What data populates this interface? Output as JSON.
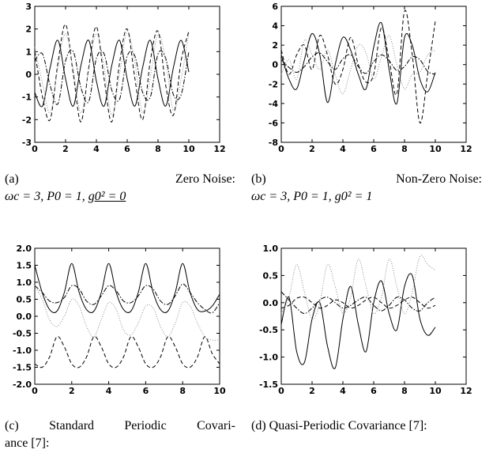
{
  "chart_data": [
    {
      "type": "line",
      "xlim": [
        0,
        12
      ],
      "ylim": [
        -3,
        3
      ],
      "xticks": [
        "0",
        "2",
        "4",
        "6",
        "8",
        "10",
        "12"
      ],
      "yticks": [
        "3",
        "2",
        "1",
        "0",
        "-1",
        "-2",
        "-3"
      ],
      "series": [
        {
          "style": "solid",
          "x": [
            0,
            0.5,
            1,
            1.5,
            2,
            2.5,
            3,
            3.5,
            4,
            4.5,
            5,
            5.5,
            6,
            6.5,
            7,
            7.5,
            8,
            8.5,
            9,
            9.5,
            10
          ],
          "y": [
            -0.8,
            -1.4,
            0.3,
            1.5,
            -0.2,
            -1.4,
            0.4,
            1.5,
            -0.3,
            -1.4,
            0.4,
            1.5,
            -0.2,
            -1.4,
            0.3,
            1.5,
            -0.2,
            -1.4,
            0.3,
            1.5,
            0.1
          ]
        },
        {
          "style": "dashed",
          "x": [
            0,
            0.5,
            1,
            1.5,
            2,
            2.5,
            3,
            3.5,
            4,
            4.5,
            5,
            5.5,
            6,
            6.5,
            7,
            7.5,
            8,
            8.5,
            9,
            9.5,
            10
          ],
          "y": [
            1.0,
            -1.0,
            -2.0,
            0.5,
            2.2,
            0.0,
            -2.1,
            0.3,
            2.1,
            -0.2,
            -2.1,
            0.5,
            2.0,
            -0.2,
            -2.0,
            0.6,
            1.9,
            -0.5,
            -1.8,
            0.6,
            1.9
          ]
        },
        {
          "style": "dashdot",
          "x": [
            0,
            0.5,
            1,
            1.5,
            2,
            2.5,
            3,
            3.5,
            4,
            4.5,
            5,
            5.5,
            6,
            6.5,
            7,
            7.5,
            8,
            8.5,
            9,
            9.5,
            10
          ],
          "y": [
            0.6,
            0.9,
            -0.5,
            -1.3,
            0.6,
            1.0,
            -0.6,
            -1.2,
            0.7,
            0.9,
            -0.7,
            -1.1,
            0.8,
            0.8,
            -0.8,
            -1.0,
            0.9,
            0.7,
            -0.9,
            -0.9,
            1.0
          ]
        },
        {
          "style": "dotted",
          "x": [
            0,
            0.5,
            1,
            1.5,
            2,
            2.5,
            3,
            3.5,
            4,
            4.5,
            5,
            5.5,
            6,
            6.5,
            7,
            7.5,
            8,
            8.5,
            9,
            9.5,
            10
          ],
          "y": [
            1.2,
            -0.4,
            -1.7,
            0.3,
            1.8,
            0.2,
            -1.7,
            0.2,
            1.8,
            0.3,
            -1.8,
            0.0,
            1.9,
            0.5,
            -1.7,
            -0.1,
            1.8,
            0.6,
            -1.6,
            -0.2,
            1.8
          ]
        }
      ]
    },
    {
      "type": "line",
      "xlim": [
        0,
        12
      ],
      "ylim": [
        -8,
        6
      ],
      "xticks": [
        "0",
        "2",
        "4",
        "6",
        "8",
        "10",
        "12"
      ],
      "yticks": [
        "6",
        "4",
        "2",
        "0",
        "-2",
        "-4",
        "-6",
        "-8"
      ],
      "series": [
        {
          "style": "solid",
          "x": [
            0,
            0.5,
            1,
            1.5,
            2,
            2.5,
            3,
            3.5,
            4,
            4.5,
            5,
            5.5,
            6,
            6.5,
            7,
            7.5,
            8,
            8.5,
            9,
            9.5,
            10
          ],
          "y": [
            1.0,
            -1.5,
            -2.5,
            0.5,
            3.2,
            1.0,
            -3.9,
            0.0,
            2.8,
            1.5,
            -1.0,
            -2.5,
            1.8,
            4.3,
            -0.5,
            -4.0,
            2.8,
            2.0,
            -1.5,
            -2.8,
            -0.8
          ]
        },
        {
          "style": "dashed",
          "x": [
            0,
            0.5,
            1,
            1.5,
            2,
            2.5,
            3,
            3.5,
            4,
            4.5,
            5,
            5.5,
            6,
            6.5,
            7,
            7.5,
            8,
            8.5,
            9,
            9.5,
            10
          ],
          "y": [
            1.5,
            -1.0,
            1.0,
            2.0,
            -0.5,
            3.0,
            1.0,
            -2.0,
            -0.5,
            2.8,
            0.0,
            -1.8,
            -1.0,
            3.8,
            0.5,
            -3.0,
            5.5,
            1.0,
            -6.0,
            -1.0,
            4.5
          ]
        },
        {
          "style": "dashdot",
          "x": [
            0,
            0.5,
            1,
            1.5,
            2,
            2.5,
            3,
            3.5,
            4,
            4.5,
            5,
            5.5,
            6,
            6.5,
            7,
            7.5,
            8,
            8.5,
            9,
            9.5,
            10
          ],
          "y": [
            0.5,
            -0.3,
            -0.8,
            -0.2,
            0.8,
            1.2,
            0.3,
            -0.5,
            0.6,
            1.0,
            -0.2,
            -0.9,
            0.3,
            1.0,
            0.4,
            -0.6,
            -0.2,
            0.8,
            0.5,
            -0.7,
            -1.0
          ]
        },
        {
          "style": "dotted",
          "x": [
            0,
            0.5,
            1,
            1.5,
            2,
            2.5,
            3,
            3.5,
            4,
            4.5,
            5,
            5.5,
            6,
            6.5,
            7,
            7.5,
            8,
            8.5,
            9,
            9.5,
            10
          ],
          "y": [
            -1.0,
            0.5,
            -1.5,
            2.5,
            1.0,
            -0.5,
            1.5,
            -1.0,
            -3.0,
            -0.5,
            2.0,
            1.2,
            -1.5,
            0.8,
            3.0,
            0.0,
            -2.5,
            -1.0,
            -0.8,
            1.0,
            1.5
          ]
        }
      ]
    },
    {
      "type": "line",
      "xlim": [
        0,
        10
      ],
      "ylim": [
        -2.0,
        2.0
      ],
      "xticks": [
        "0",
        "2",
        "4",
        "6",
        "8",
        "10"
      ],
      "yticks": [
        "2.0",
        "1.5",
        "1.0",
        "0.5",
        "0.0",
        "-0.5",
        "-1.0",
        "-1.5",
        "-2.0"
      ],
      "series": [
        {
          "style": "solid",
          "x": [
            0,
            0.4,
            0.8,
            1.2,
            1.6,
            2.0,
            2.4,
            2.8,
            3.2,
            3.6,
            4.0,
            4.4,
            4.8,
            5.2,
            5.6,
            6.0,
            6.4,
            6.8,
            7.2,
            7.6,
            8.0,
            8.4,
            8.8,
            9.2,
            9.6,
            10
          ],
          "y": [
            1.5,
            0.7,
            0.2,
            0.15,
            0.7,
            1.55,
            0.7,
            0.2,
            0.15,
            0.7,
            1.55,
            0.7,
            0.2,
            0.15,
            0.7,
            1.55,
            0.7,
            0.2,
            0.15,
            0.7,
            1.55,
            0.7,
            0.2,
            0.15,
            0.3,
            0.65
          ]
        },
        {
          "style": "dashdot",
          "x": [
            0,
            0.4,
            0.8,
            1.2,
            1.6,
            2.0,
            2.4,
            2.8,
            3.2,
            3.6,
            4.0,
            4.4,
            4.8,
            5.2,
            5.6,
            6.0,
            6.4,
            6.8,
            7.2,
            7.6,
            8.0,
            8.4,
            8.8,
            9.2,
            9.6,
            10
          ],
          "y": [
            0.9,
            0.7,
            0.45,
            0.4,
            0.55,
            0.9,
            0.8,
            0.45,
            0.35,
            0.6,
            0.9,
            0.75,
            0.45,
            0.4,
            0.6,
            0.9,
            0.8,
            0.45,
            0.35,
            0.6,
            0.95,
            0.7,
            0.4,
            0.2,
            0.1,
            0.4
          ]
        },
        {
          "style": "dashed",
          "x": [
            0,
            0.4,
            0.8,
            1.2,
            1.6,
            2.0,
            2.4,
            2.8,
            3.2,
            3.6,
            4.0,
            4.4,
            4.8,
            5.2,
            5.6,
            6.0,
            6.4,
            6.8,
            7.2,
            7.6,
            8.0,
            8.4,
            8.8,
            9.2,
            9.6,
            10
          ],
          "y": [
            -1.4,
            -1.5,
            -1.2,
            -0.6,
            -0.9,
            -1.4,
            -1.5,
            -1.2,
            -0.6,
            -0.9,
            -1.4,
            -1.5,
            -1.2,
            -0.6,
            -0.9,
            -1.4,
            -1.5,
            -1.2,
            -0.6,
            -0.9,
            -1.4,
            -1.5,
            -1.2,
            -0.6,
            -1.1,
            -1.4
          ]
        },
        {
          "style": "dotted",
          "x": [
            0,
            0.4,
            0.8,
            1.2,
            1.6,
            2.0,
            2.4,
            2.8,
            3.2,
            3.6,
            4.0,
            4.4,
            4.8,
            5.2,
            5.6,
            6.0,
            6.4,
            6.8,
            7.2,
            7.6,
            8.0,
            8.4,
            8.8,
            9.2,
            9.6,
            10
          ],
          "y": [
            0.9,
            0.5,
            -0.1,
            -0.3,
            0.0,
            0.5,
            0.3,
            -0.3,
            -0.6,
            -0.1,
            0.4,
            0.2,
            -0.4,
            -0.55,
            -0.2,
            0.3,
            0.25,
            -0.3,
            -0.6,
            -0.2,
            0.4,
            0.3,
            -0.2,
            -0.6,
            -0.7,
            -0.7
          ]
        }
      ]
    },
    {
      "type": "line",
      "xlim": [
        0,
        12
      ],
      "ylim": [
        -1.5,
        1.0
      ],
      "xticks": [
        "0",
        "2",
        "4",
        "6",
        "8",
        "10",
        "12"
      ],
      "yticks": [
        "1.0",
        "0.5",
        "0.0",
        "-0.5",
        "-1.0",
        "-1.5"
      ],
      "series": [
        {
          "style": "solid",
          "x": [
            0,
            0.5,
            1,
            1.5,
            2,
            2.5,
            3,
            3.5,
            4,
            4.5,
            5,
            5.5,
            6,
            6.5,
            7,
            7.5,
            8,
            8.5,
            9,
            9.5,
            10
          ],
          "y": [
            -0.4,
            0.1,
            -0.9,
            -1.1,
            -0.3,
            0.0,
            -0.8,
            -1.2,
            -0.3,
            0.3,
            -0.4,
            -0.9,
            0.0,
            0.4,
            -0.2,
            -0.5,
            0.3,
            0.5,
            -0.3,
            -0.6,
            -0.45
          ]
        },
        {
          "style": "dashed",
          "x": [
            0,
            0.5,
            1,
            1.5,
            2,
            2.5,
            3,
            3.5,
            4,
            4.5,
            5,
            5.5,
            6,
            6.5,
            7,
            7.5,
            8,
            8.5,
            9,
            9.5,
            10
          ],
          "y": [
            -0.1,
            -0.05,
            0.08,
            0.1,
            0.0,
            -0.1,
            -0.05,
            0.05,
            0.0,
            -0.1,
            -0.05,
            0.05,
            0.1,
            0.0,
            -0.1,
            -0.05,
            0.05,
            0.1,
            0.0,
            -0.1,
            -0.05
          ]
        },
        {
          "style": "dashdot",
          "x": [
            0,
            0.5,
            1,
            1.5,
            2,
            2.5,
            3,
            3.5,
            4,
            4.5,
            5,
            5.5,
            6,
            6.5,
            7,
            7.5,
            8,
            8.5,
            9,
            9.5,
            10
          ],
          "y": [
            0.2,
            0.05,
            -0.1,
            -0.2,
            -0.1,
            0.05,
            0.1,
            0.0,
            -0.1,
            -0.05,
            0.05,
            0.1,
            -0.05,
            -0.15,
            -0.05,
            0.1,
            0.05,
            -0.1,
            -0.15,
            0.0,
            0.1
          ]
        },
        {
          "style": "dotted",
          "x": [
            0,
            0.5,
            1,
            1.5,
            2,
            2.5,
            3,
            3.5,
            4,
            4.5,
            5,
            5.5,
            6,
            6.5,
            7,
            7.5,
            8,
            8.5,
            9,
            9.5,
            10
          ],
          "y": [
            -0.2,
            0.1,
            0.7,
            0.2,
            -0.3,
            0.0,
            0.7,
            0.3,
            -0.2,
            0.1,
            0.8,
            0.3,
            -0.2,
            0.1,
            0.8,
            0.3,
            -0.2,
            0.2,
            0.85,
            0.7,
            0.6
          ]
        }
      ]
    }
  ],
  "captions": {
    "a": {
      "label": "(a)",
      "head": "Zero Noise:",
      "math_plain": "ωc = 3, P0 = 1, ",
      "math_underlined": "g0² = 0"
    },
    "b": {
      "label": "(b)",
      "head": "Non-Zero Noise:",
      "math_plain": "ωc = 3, P0 = 1, g0² = 1"
    },
    "c": {
      "line1_words": [
        "(c)",
        "Standard",
        "Periodic",
        "Covari-"
      ],
      "line2": "ance [7]:"
    },
    "d": {
      "line1": "(d) Quasi-Periodic Covariance [7]:"
    }
  }
}
